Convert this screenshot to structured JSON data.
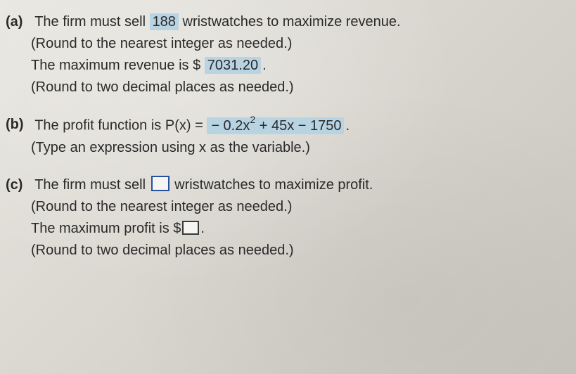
{
  "text_color": "#2a2a2a",
  "highlight_color": "#b8d4e3",
  "input_border_color": "#2850a0",
  "input_border_color_small": "#3a3a3a",
  "background_gradient": [
    "#e8e6e0",
    "#d8d5ce",
    "#c8c5be"
  ],
  "font_size": 20,
  "parts": {
    "a": {
      "label": "(a)",
      "line1_pre": "The firm must sell ",
      "line1_answer": "188",
      "line1_post": " wristwatches to maximize revenue.",
      "line2": "(Round to the nearest integer as needed.)",
      "line3_pre": "The maximum revenue is $ ",
      "line3_answer": "7031.20",
      "line3_post": ".",
      "line4": "(Round to two decimal places as needed.)"
    },
    "b": {
      "label": "(b)",
      "line1_pre": "The profit function is P(x) = ",
      "line1_answer_html": "− 0.2x<span class=\"sup\">2</span> + 45x − 1750",
      "line1_post": ".",
      "line2": "(Type an expression using x as the variable.)"
    },
    "c": {
      "label": "(c)",
      "line1_pre": "The firm must sell ",
      "line1_post": " wristwatches to maximize profit.",
      "line2": "(Round to the nearest integer as needed.)",
      "line3_pre": "The maximum profit is $",
      "line3_post": ".",
      "line4": "(Round to two decimal places as needed.)"
    }
  }
}
